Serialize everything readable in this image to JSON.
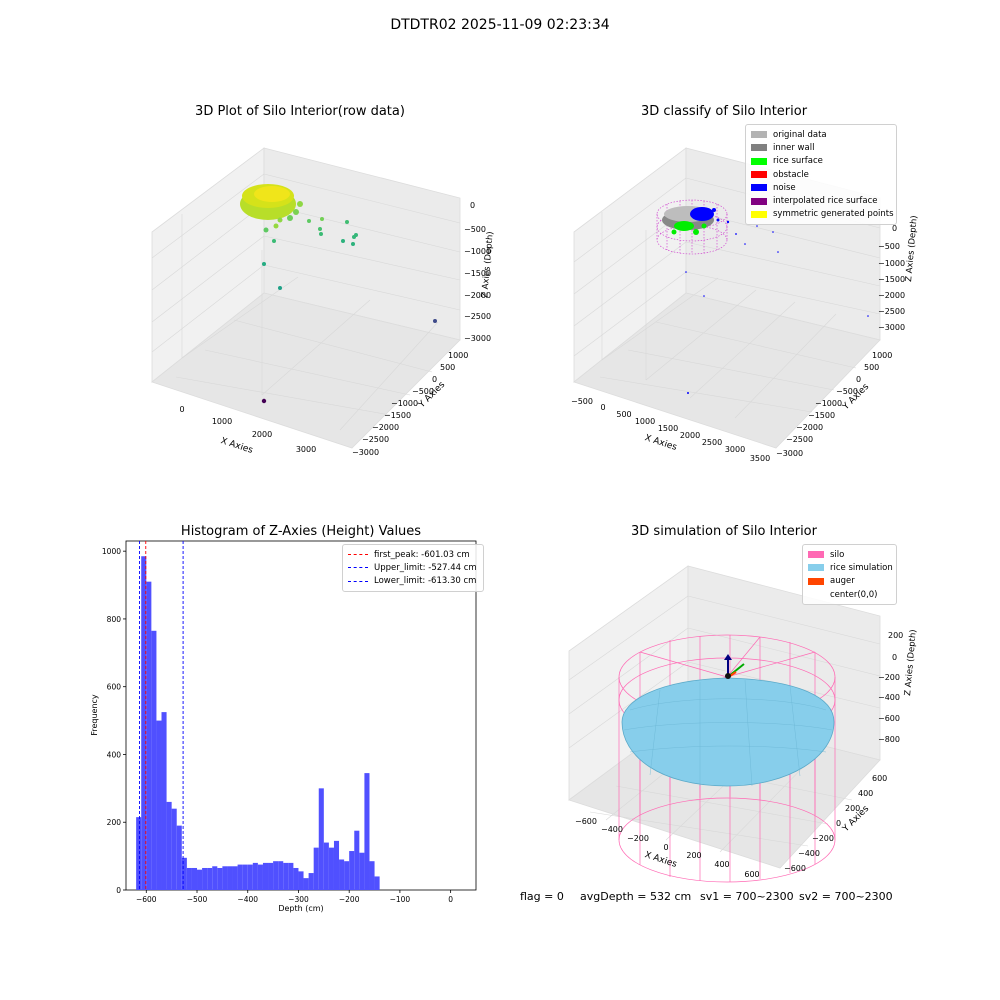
{
  "suptitle": "DTDTR02 2025-11-09 02:23:34",
  "status": {
    "flag": "flag = 0",
    "avg_depth": "avgDepth = 532 cm",
    "sv1": "sv1 = 700~2300",
    "sv2": "sv2 = 700~2300"
  },
  "panels": {
    "raw": {
      "title": "3D Plot of Silo Interior(row data)",
      "xlabel": "X Axies",
      "ylabel": "Y Axies",
      "zlabel": "Z Axies (Depth)",
      "xticks": [
        "0",
        "1000",
        "2000",
        "3000"
      ],
      "yticks": [
        "1000",
        "500",
        "0",
        "−500",
        "−1000",
        "−1500",
        "−2000",
        "−2500",
        "−3000"
      ],
      "zticks": [
        "0",
        "−500",
        "−1000",
        "−1500",
        "−2000",
        "−2500",
        "−3000"
      ]
    },
    "classify": {
      "title": "3D classify of Silo Interior",
      "xlabel": "X Axies",
      "ylabel": "Y Axies",
      "zlabel": "Z Axies (Depth)",
      "xticks": [
        "−500",
        "0",
        "500",
        "1000",
        "1500",
        "2000",
        "2500",
        "3000",
        "3500"
      ],
      "yticks": [
        "1000",
        "500",
        "0",
        "−500",
        "−1000",
        "−1500",
        "−2000",
        "−2500",
        "−3000"
      ],
      "zticks": [
        "0",
        "−500",
        "−1000",
        "−1500",
        "−2000",
        "−2500",
        "−3000"
      ],
      "legend": [
        {
          "label": "original data",
          "color": "#b3b3b3"
        },
        {
          "label": "inner wall",
          "color": "#808080"
        },
        {
          "label": "rice surface",
          "color": "#00ff00"
        },
        {
          "label": "obstacle",
          "color": "#ff0000"
        },
        {
          "label": "noise",
          "color": "#0000ff"
        },
        {
          "label": "interpolated rice surface",
          "color": "#800080"
        },
        {
          "label": "symmetric generated points",
          "color": "#ffff00"
        }
      ]
    },
    "simulation": {
      "title": "3D simulation of Silo Interior",
      "xlabel": "X Axies",
      "ylabel": "Y Axies",
      "zlabel": "Z Axies (Depth)",
      "xticks": [
        "−600",
        "−400",
        "−200",
        "0",
        "200",
        "400",
        "600"
      ],
      "yticks": [
        "600",
        "400",
        "200",
        "0",
        "−200",
        "−400",
        "−600"
      ],
      "zticks": [
        "200",
        "0",
        "−200",
        "−400",
        "−600",
        "−800"
      ],
      "legend": [
        {
          "label": "silo",
          "color": "#ff69b4"
        },
        {
          "label": "rice simulation",
          "color": "#87ceeb"
        },
        {
          "label": "auger",
          "color": "#ff4500"
        },
        {
          "label": "center(0,0)",
          "color": ""
        }
      ]
    }
  },
  "chart_data": [
    {
      "type": "bar",
      "title": "Histogram of Z-Axies (Height) Values",
      "xlabel": "Depth (cm)",
      "ylabel": "Frequency",
      "bar_color": "#5050ff",
      "bin_start": -620,
      "bin_width": 10,
      "values": [
        215,
        985,
        910,
        765,
        500,
        525,
        260,
        240,
        190,
        95,
        65,
        65,
        60,
        65,
        65,
        70,
        65,
        70,
        70,
        70,
        75,
        75,
        75,
        80,
        75,
        80,
        80,
        85,
        85,
        80,
        80,
        65,
        55,
        35,
        50,
        125,
        300,
        140,
        125,
        145,
        90,
        85,
        115,
        175,
        110,
        345,
        85,
        40
      ],
      "xlim": [
        -640,
        50
      ],
      "ylim": [
        0,
        1030
      ],
      "xticks": [
        -600,
        -500,
        -400,
        -300,
        -200,
        -100,
        0
      ],
      "yticks": [
        0,
        200,
        400,
        600,
        800,
        1000
      ],
      "grid": false,
      "legend_position": "top-right",
      "reference_lines": [
        {
          "label": "first_peak: -601.03 cm",
          "x": -601.03,
          "color": "#ff0000"
        },
        {
          "label": "Upper_limit: -527.44 cm",
          "x": -527.44,
          "color": "#0000ff"
        },
        {
          "label": "Lower_limit: -613.30 cm",
          "x": -613.3,
          "color": "#0000ff"
        }
      ]
    }
  ]
}
